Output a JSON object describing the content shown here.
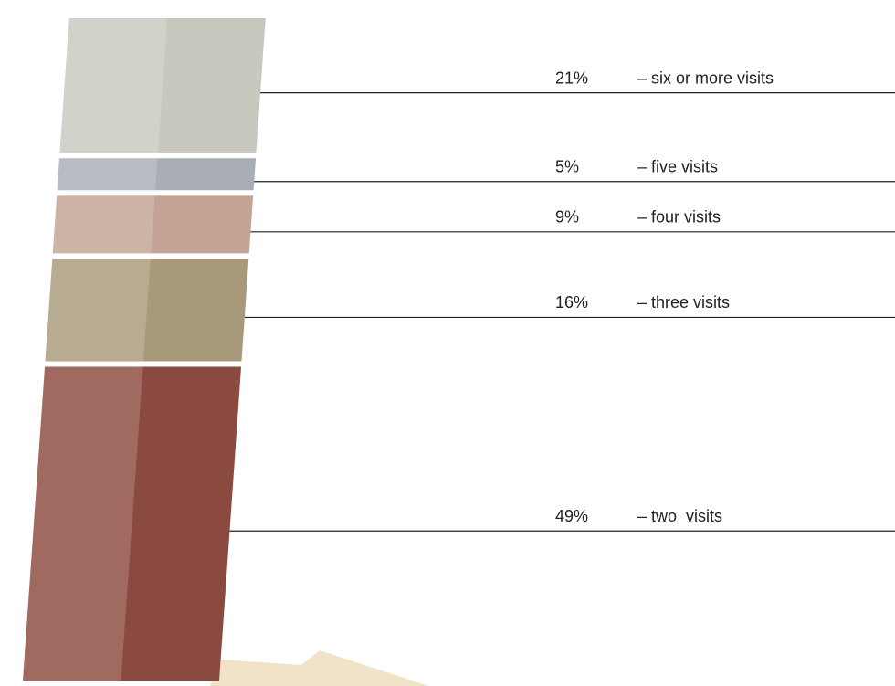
{
  "chart_data": {
    "type": "stack",
    "series": [
      {
        "name": "– six or more visits",
        "color": "#c9c8bf",
        "values": [
          21
        ],
        "value_labels": [
          "21%"
        ]
      },
      {
        "name": "– five visits",
        "color": "#a9adb5",
        "values": [
          5
        ],
        "value_labels": [
          "5%"
        ]
      },
      {
        "name": "– four visits",
        "color": "#c4a394",
        "values": [
          9
        ],
        "value_labels": [
          "9%"
        ]
      },
      {
        "name": "– three visits",
        "color": "#a8997a",
        "values": [
          16
        ],
        "value_labels": [
          "16%"
        ]
      },
      {
        "name": "– two  visits",
        "color": "#8b4a3f",
        "values": [
          49
        ],
        "value_labels": [
          "49%"
        ]
      }
    ]
  }
}
